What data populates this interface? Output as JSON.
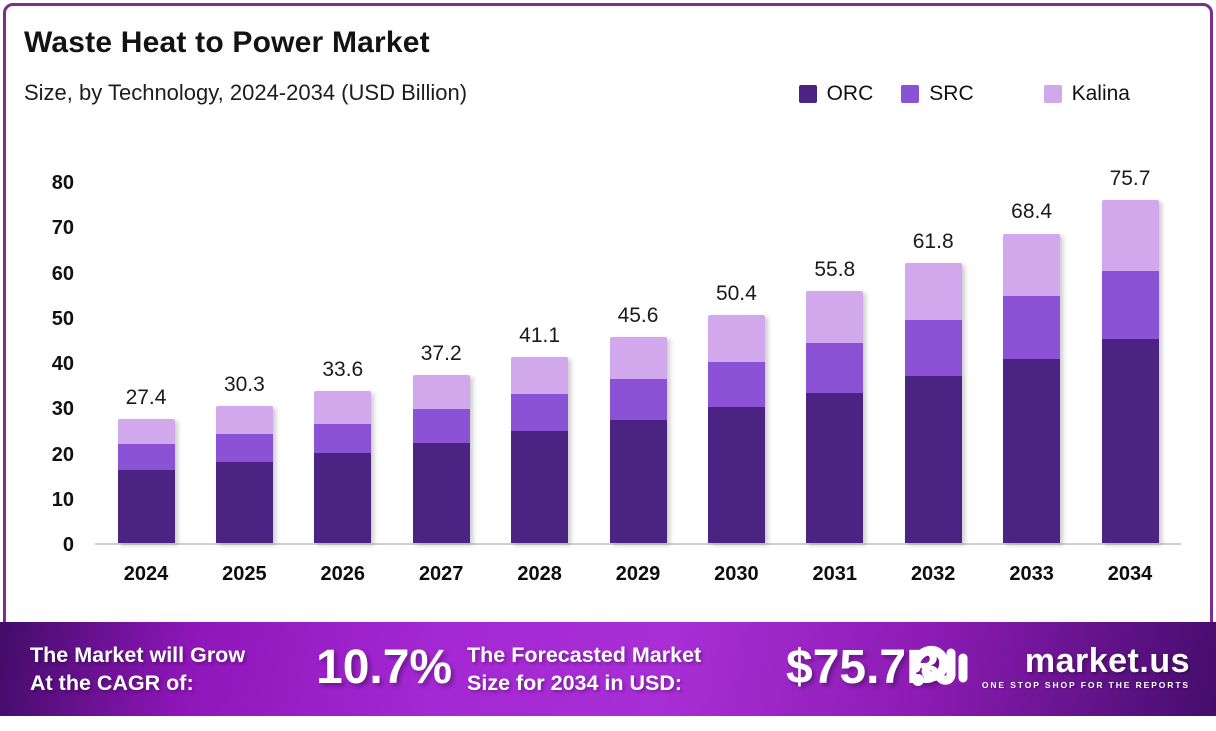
{
  "page": {
    "border_color": "#7B2D90",
    "background": "#FFFFFF"
  },
  "header": {
    "title": "Waste Heat to Power Market",
    "subtitle": "Size, by Technology, 2024-2034 (USD Billion)"
  },
  "legend": [
    {
      "label": "ORC",
      "color": "#4A2383"
    },
    {
      "label": "SRC",
      "color": "#8B52D6"
    },
    {
      "label": "Kalina",
      "color": "#D2A8EC"
    }
  ],
  "chart_data": {
    "type": "bar",
    "stacked": true,
    "title": "Waste Heat to Power Market Size, by Technology, 2024-2034 (USD Billion)",
    "categories": [
      "2024",
      "2025",
      "2026",
      "2027",
      "2028",
      "2029",
      "2030",
      "2031",
      "2032",
      "2033",
      "2034"
    ],
    "series": [
      {
        "name": "ORC",
        "color": "#4A2383",
        "values": [
          16.2,
          17.9,
          19.8,
          22.2,
          24.7,
          27.2,
          30.0,
          33.2,
          36.8,
          40.7,
          45.0
        ]
      },
      {
        "name": "SRC",
        "color": "#8B52D6",
        "values": [
          5.6,
          6.1,
          6.6,
          7.5,
          8.2,
          9.1,
          10.0,
          11.1,
          12.5,
          13.8,
          15.1
        ]
      },
      {
        "name": "Kalina",
        "color": "#D2A8EC",
        "values": [
          5.6,
          6.3,
          7.2,
          7.5,
          8.2,
          9.3,
          10.4,
          11.5,
          12.5,
          13.9,
          15.6
        ]
      }
    ],
    "totals": [
      27.4,
      30.3,
      33.6,
      37.2,
      41.1,
      45.6,
      50.4,
      55.8,
      61.8,
      68.4,
      75.7
    ],
    "xlabel": "",
    "ylabel": "",
    "ylim": [
      0,
      80
    ],
    "yticks": [
      0,
      10,
      20,
      30,
      40,
      50,
      60,
      70,
      80
    ],
    "grid": false,
    "legend_position": "top-right"
  },
  "banner": {
    "cagr_label_line1": "The Market will Grow",
    "cagr_label_line2": "At the CAGR of:",
    "cagr_value": "10.7%",
    "forecast_label_line1": "The Forecasted Market",
    "forecast_label_line2": "Size for 2034 in USD:",
    "forecast_value": "$75.7B",
    "gradient_colors": [
      "#420C68",
      "#A82ED5",
      "#450D6C"
    ]
  },
  "logo": {
    "name": "market.us",
    "tagline": "ONE STOP SHOP FOR THE REPORTS"
  }
}
